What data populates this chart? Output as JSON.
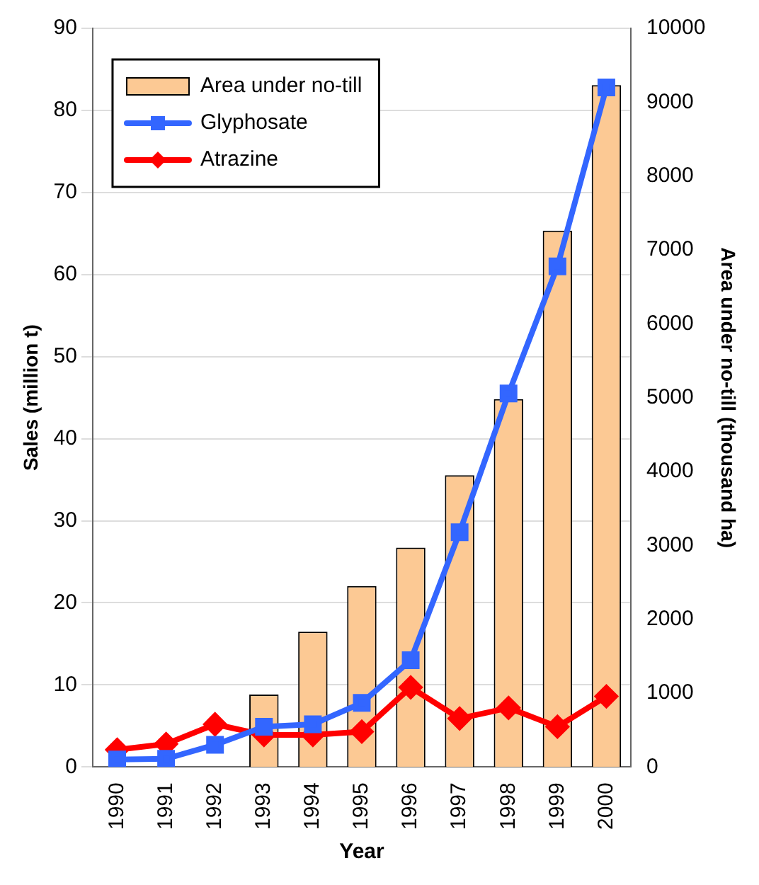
{
  "chart_data": {
    "type": "bar",
    "xlabel": "Year",
    "ylabel": "Sales (million t)",
    "y2label": "Area under no-till (thousand ha)",
    "categories": [
      "1990",
      "1991",
      "1992",
      "1993",
      "1994",
      "1995",
      "1996",
      "1997",
      "1998",
      "1999",
      "2000"
    ],
    "series": [
      {
        "name": "Area under no-till",
        "axis": "y2",
        "color": "#fcc994",
        "values": [
          null,
          null,
          null,
          980,
          1830,
          2450,
          2970,
          3950,
          4980,
          7260,
          9230
        ]
      },
      {
        "name": "Glyphosate",
        "type": "line",
        "color": "#3366ff",
        "marker": "square",
        "values": [
          0.9,
          1.0,
          2.7,
          4.9,
          5.2,
          7.8,
          13,
          28.6,
          45.5,
          61,
          82.8
        ]
      },
      {
        "name": "Atrazine",
        "type": "line",
        "color": "#ff0000",
        "marker": "diamond",
        "values": [
          2.1,
          2.8,
          5.2,
          3.9,
          3.9,
          4.3,
          9.7,
          5.9,
          7.2,
          4.9,
          8.6
        ]
      }
    ],
    "ylim": [
      0,
      90
    ],
    "yticks": [
      0,
      10,
      20,
      30,
      40,
      50,
      60,
      70,
      80,
      90
    ],
    "y2lim": [
      0,
      10000
    ],
    "y2ticks": [
      0,
      1000,
      2000,
      3000,
      4000,
      5000,
      6000,
      7000,
      8000,
      9000,
      10000
    ],
    "grid": "y",
    "legend": "top left"
  }
}
